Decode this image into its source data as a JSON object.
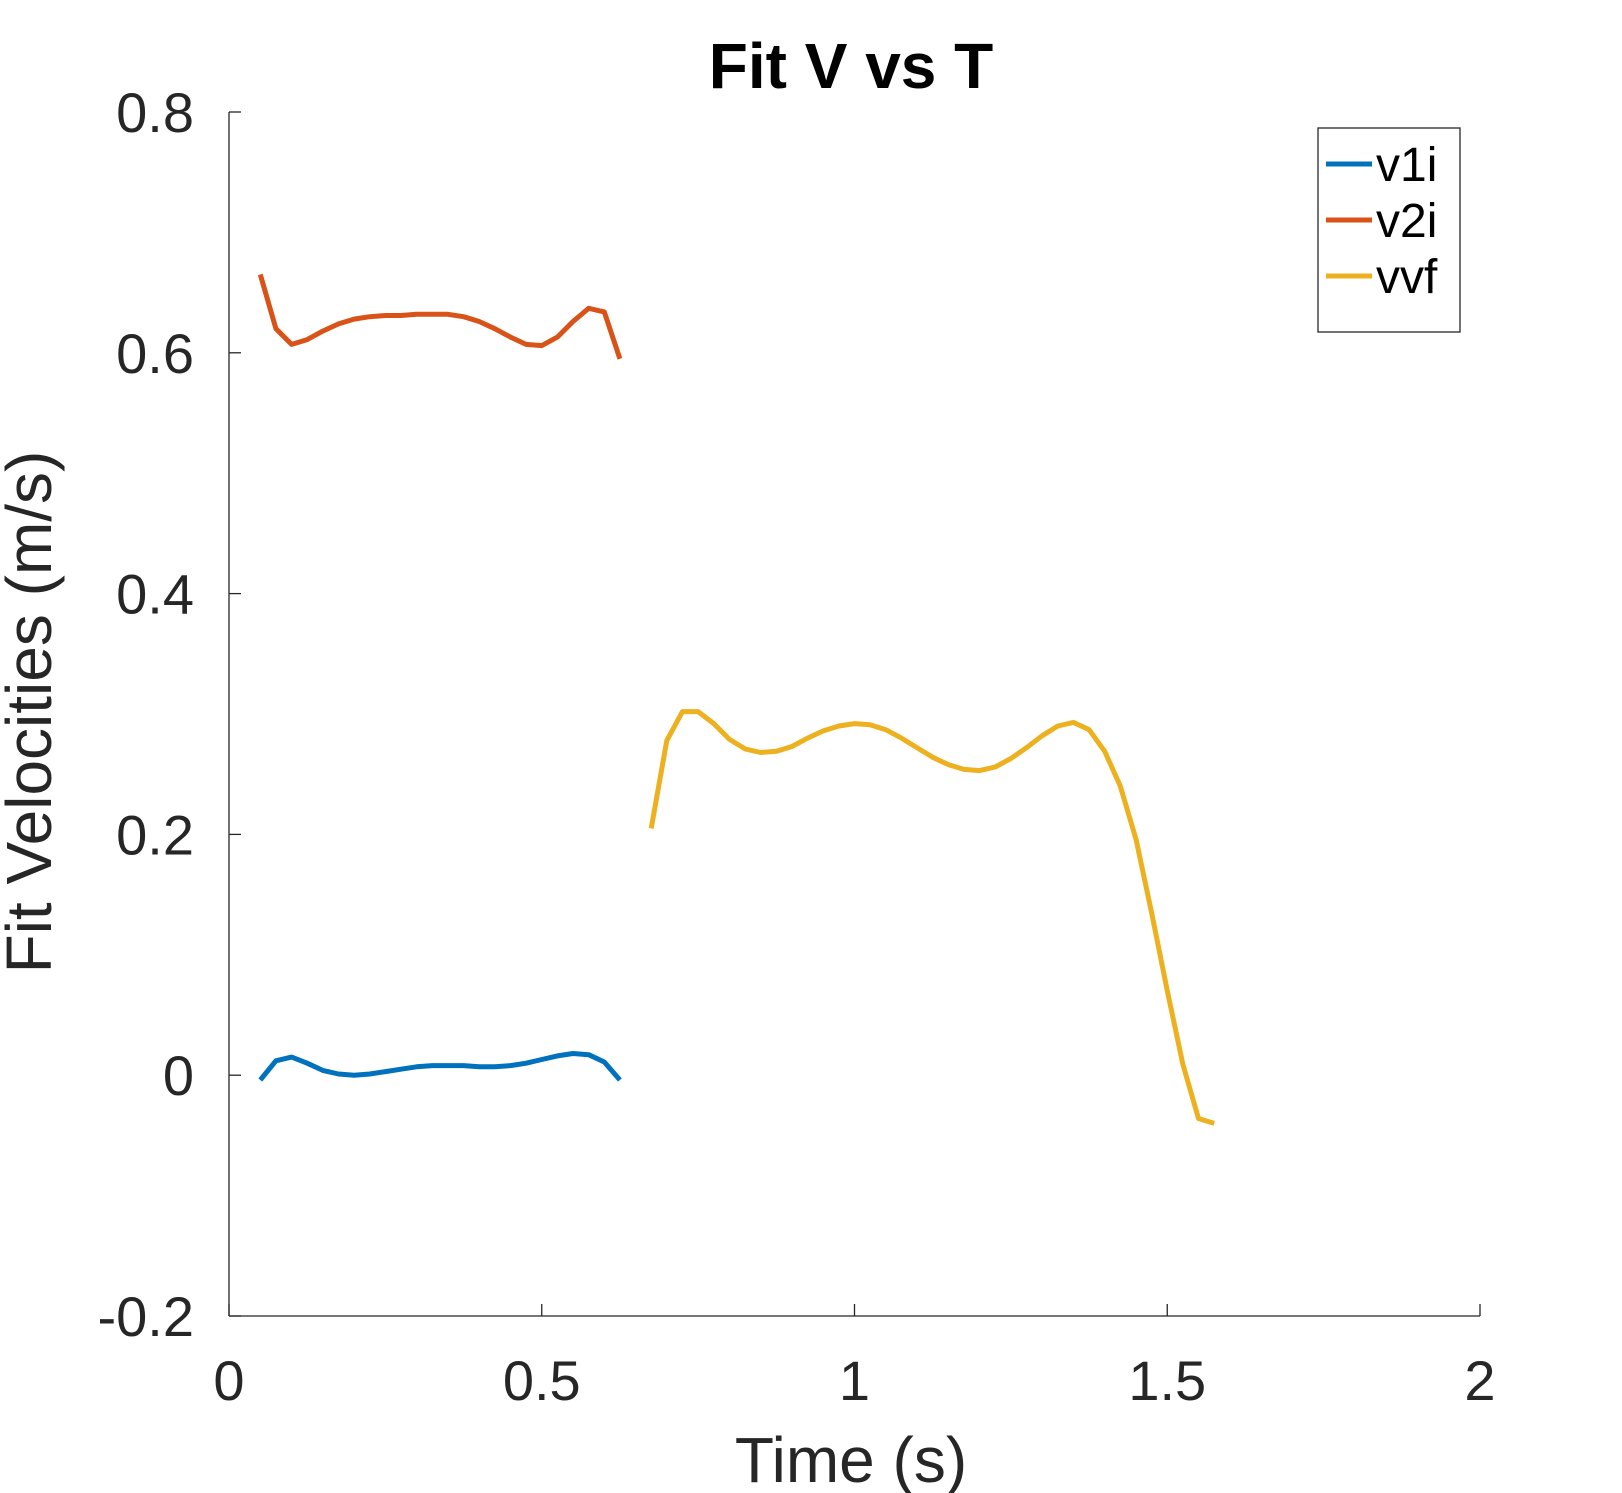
{
  "chart_data": {
    "type": "line",
    "title": "Fit V vs T",
    "xlabel": "Time (s)",
    "ylabel": "Fit Velocities (m/s)",
    "xlim": [
      0,
      2
    ],
    "ylim": [
      -0.2,
      0.8
    ],
    "xticks": [
      0,
      0.5,
      1,
      1.5,
      2
    ],
    "xtick_labels": [
      "0",
      "0.5",
      "1",
      "1.5",
      "2"
    ],
    "yticks": [
      -0.2,
      0,
      0.2,
      0.4,
      0.6,
      0.8
    ],
    "ytick_labels": [
      "-0.2",
      "0",
      "0.2",
      "0.4",
      "0.6",
      "0.8"
    ],
    "grid": false,
    "legend_position": "top-right",
    "series": [
      {
        "name": "v1i",
        "color": "#0072BD",
        "x": [
          0.05,
          0.075,
          0.1,
          0.125,
          0.15,
          0.175,
          0.2,
          0.225,
          0.25,
          0.275,
          0.3,
          0.325,
          0.35,
          0.375,
          0.4,
          0.425,
          0.45,
          0.475,
          0.5,
          0.525,
          0.55,
          0.575,
          0.6,
          0.625
        ],
        "y": [
          -0.004,
          0.012,
          0.015,
          0.01,
          0.004,
          0.001,
          0.0,
          0.001,
          0.003,
          0.005,
          0.007,
          0.008,
          0.008,
          0.008,
          0.007,
          0.007,
          0.008,
          0.01,
          0.013,
          0.016,
          0.018,
          0.017,
          0.011,
          -0.004
        ]
      },
      {
        "name": "v2i",
        "color": "#D95319",
        "x": [
          0.05,
          0.075,
          0.1,
          0.125,
          0.15,
          0.175,
          0.2,
          0.225,
          0.25,
          0.275,
          0.3,
          0.325,
          0.35,
          0.375,
          0.4,
          0.425,
          0.45,
          0.475,
          0.5,
          0.525,
          0.55,
          0.575,
          0.6,
          0.625
        ],
        "y": [
          0.665,
          0.62,
          0.607,
          0.611,
          0.618,
          0.624,
          0.628,
          0.63,
          0.631,
          0.631,
          0.632,
          0.632,
          0.632,
          0.63,
          0.626,
          0.62,
          0.613,
          0.607,
          0.606,
          0.613,
          0.626,
          0.637,
          0.634,
          0.595
        ]
      },
      {
        "name": "vvf",
        "color": "#EDB120",
        "x": [
          0.675,
          0.7,
          0.725,
          0.75,
          0.775,
          0.8,
          0.825,
          0.85,
          0.875,
          0.9,
          0.925,
          0.95,
          0.975,
          1.0,
          1.025,
          1.05,
          1.075,
          1.1,
          1.125,
          1.15,
          1.175,
          1.2,
          1.225,
          1.25,
          1.275,
          1.3,
          1.325,
          1.35,
          1.375,
          1.4,
          1.425,
          1.45,
          1.475,
          1.5,
          1.525,
          1.55,
          1.575
        ],
        "y": [
          0.205,
          0.278,
          0.302,
          0.302,
          0.292,
          0.279,
          0.271,
          0.268,
          0.269,
          0.273,
          0.28,
          0.286,
          0.29,
          0.292,
          0.291,
          0.287,
          0.28,
          0.272,
          0.264,
          0.258,
          0.254,
          0.253,
          0.256,
          0.263,
          0.272,
          0.282,
          0.29,
          0.293,
          0.287,
          0.269,
          0.24,
          0.196,
          0.135,
          0.07,
          0.009,
          -0.036,
          -0.04
        ]
      }
    ]
  }
}
